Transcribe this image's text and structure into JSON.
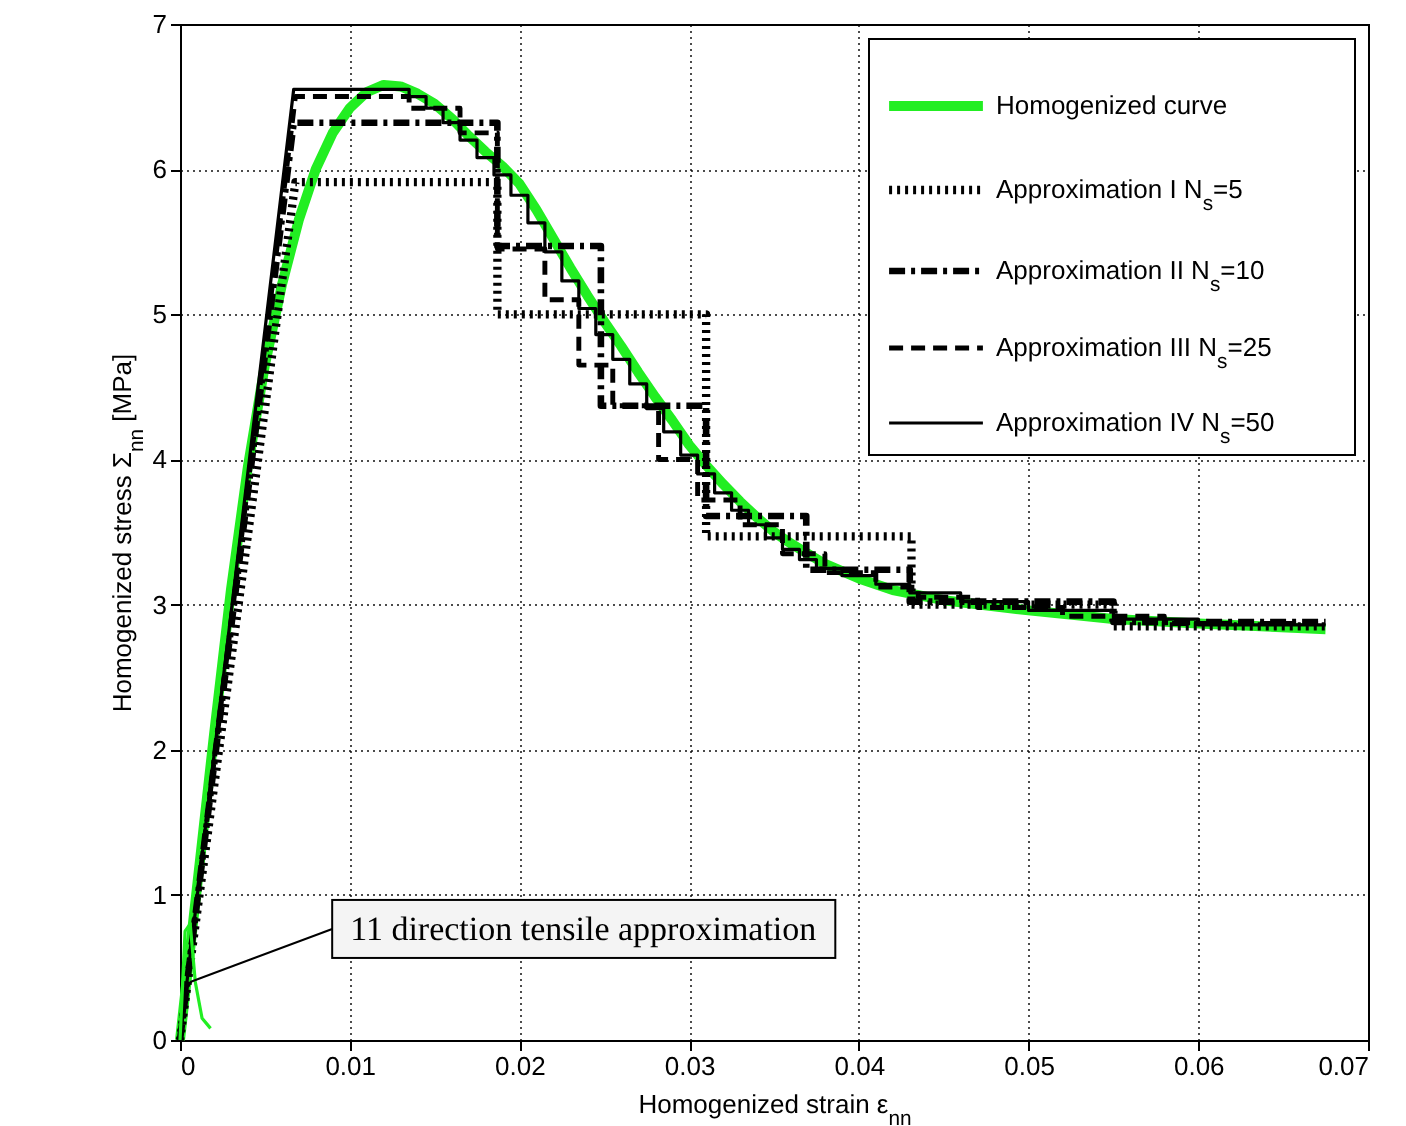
{
  "chart_data": {
    "type": "line",
    "xlabel": "Homogenized strain ε$_{nn}$",
    "ylabel": "Homogenized stress Σ$_{nn}$ [MPa]",
    "xlim": [
      0,
      0.07
    ],
    "xticks": [
      0,
      0.01,
      0.02,
      0.03,
      0.04,
      0.05,
      0.06,
      0.07
    ],
    "ylim": [
      0,
      7
    ],
    "yticks": [
      0,
      1,
      2,
      3,
      4,
      5,
      6,
      7
    ],
    "grid": true,
    "legend": "top right",
    "annotations": [
      {
        "text": "11 direction tensile approximation",
        "x": 0.0006,
        "y": 0.4
      }
    ],
    "series": [
      {
        "name": "Homogenized curve",
        "color": "#22ee22",
        "line_style": "solid",
        "x": [
          0,
          0.001,
          0.002,
          0.003,
          0.004,
          0.005,
          0.006,
          0.007,
          0.008,
          0.009,
          0.01,
          0.011,
          0.012,
          0.013,
          0.014,
          0.015,
          0.016,
          0.017,
          0.018,
          0.019,
          0.02,
          0.021,
          0.022,
          0.023,
          0.024,
          0.025,
          0.026,
          0.027,
          0.028,
          0.029,
          0.03,
          0.031,
          0.032,
          0.033,
          0.034,
          0.035,
          0.036,
          0.037,
          0.038,
          0.04,
          0.042,
          0.045,
          0.05,
          0.055,
          0.06,
          0.0675
        ],
        "values": [
          0,
          1.05,
          2.1,
          3.1,
          3.95,
          4.65,
          5.2,
          5.65,
          6.0,
          6.25,
          6.42,
          6.53,
          6.58,
          6.57,
          6.52,
          6.45,
          6.35,
          6.23,
          6.12,
          6.02,
          5.9,
          5.72,
          5.52,
          5.32,
          5.13,
          4.95,
          4.78,
          4.6,
          4.43,
          4.27,
          4.1,
          3.96,
          3.83,
          3.71,
          3.6,
          3.5,
          3.42,
          3.35,
          3.28,
          3.18,
          3.1,
          3.03,
          2.96,
          2.9,
          2.87,
          2.83
        ]
      },
      {
        "name": "Approximation I N$_{s}$=5",
        "color": "#000000",
        "line_style": "dotted",
        "x": [
          0,
          0.0068,
          0.0187,
          0.0187,
          0.031,
          0.031,
          0.0431,
          0.0431,
          0.055,
          0.055,
          0.0675
        ],
        "values": [
          0,
          5.91,
          5.91,
          5.0,
          5.0,
          3.47,
          3.47,
          3.0,
          3.0,
          2.85,
          2.85
        ]
      },
      {
        "name": "Approximation II N$_{s}$=10",
        "color": "#000000",
        "line_style": "dashdot",
        "x": [
          0,
          0.0067,
          0.0187,
          0.0187,
          0.0248,
          0.0248,
          0.031,
          0.031,
          0.0369,
          0.0369,
          0.043,
          0.043,
          0.055,
          0.055,
          0.0675
        ],
        "values": [
          0,
          6.32,
          6.32,
          5.47,
          5.47,
          4.37,
          4.37,
          3.61,
          3.61,
          3.24,
          3.24,
          3.02,
          3.02,
          2.88,
          2.88
        ]
      },
      {
        "name": "Approximation III N$_{s}$=25",
        "color": "#000000",
        "line_style": "dashed",
        "x": [
          0,
          0.0068,
          0.0135,
          0.0135,
          0.0165,
          0.0165,
          0.0187,
          0.0187,
          0.0215,
          0.0215,
          0.0235,
          0.0235,
          0.0255,
          0.0255,
          0.0282,
          0.0282,
          0.0305,
          0.0305,
          0.033,
          0.033,
          0.0355,
          0.0355,
          0.038,
          0.038,
          0.041,
          0.041,
          0.0435,
          0.0435,
          0.047,
          0.047,
          0.052,
          0.052,
          0.058,
          0.058,
          0.0675
        ],
        "values": [
          0,
          6.5,
          6.5,
          6.42,
          6.42,
          6.25,
          6.25,
          5.45,
          5.45,
          5.1,
          5.1,
          4.65,
          4.65,
          4.37,
          4.37,
          4.0,
          4.0,
          3.72,
          3.72,
          3.55,
          3.55,
          3.35,
          3.35,
          3.22,
          3.22,
          3.12,
          3.12,
          3.05,
          3.05,
          2.98,
          2.98,
          2.92,
          2.92,
          2.87,
          2.87
        ]
      },
      {
        "name": "Approximation IV N$_{s}$=50",
        "color": "#000000",
        "line_style": "solid",
        "x": [
          0,
          0.0067,
          0.0135,
          0.0135,
          0.0145,
          0.0145,
          0.0155,
          0.0155,
          0.0165,
          0.0165,
          0.0175,
          0.0175,
          0.0185,
          0.0185,
          0.0195,
          0.0195,
          0.0205,
          0.0205,
          0.0215,
          0.0215,
          0.0225,
          0.0225,
          0.0235,
          0.0235,
          0.0245,
          0.0245,
          0.0255,
          0.0255,
          0.0265,
          0.0265,
          0.0275,
          0.0275,
          0.0285,
          0.0285,
          0.0295,
          0.0295,
          0.0305,
          0.0305,
          0.0315,
          0.0315,
          0.0325,
          0.0325,
          0.0335,
          0.0335,
          0.0345,
          0.0345,
          0.0355,
          0.0355,
          0.0365,
          0.0365,
          0.0375,
          0.0375,
          0.039,
          0.039,
          0.041,
          0.041,
          0.043,
          0.043,
          0.046,
          0.046,
          0.05,
          0.05,
          0.055,
          0.055,
          0.06,
          0.06,
          0.0675
        ],
        "values": [
          0,
          6.55,
          6.55,
          6.5,
          6.5,
          6.42,
          6.42,
          6.32,
          6.32,
          6.2,
          6.2,
          6.08,
          6.08,
          5.96,
          5.96,
          5.82,
          5.82,
          5.63,
          5.63,
          5.43,
          5.43,
          5.23,
          5.23,
          5.04,
          5.04,
          4.86,
          4.86,
          4.69,
          4.69,
          4.52,
          4.52,
          4.35,
          4.35,
          4.19,
          4.19,
          4.03,
          4.03,
          3.9,
          3.9,
          3.77,
          3.77,
          3.65,
          3.65,
          3.55,
          3.55,
          3.46,
          3.46,
          3.38,
          3.38,
          3.31,
          3.31,
          3.25,
          3.25,
          3.2,
          3.2,
          3.14,
          3.14,
          3.08,
          3.08,
          3.02,
          3.02,
          2.96,
          2.96,
          2.9,
          2.9,
          2.86,
          2.86
        ]
      },
      {
        "color": "#22ee22",
        "line_style": "solid",
        "x": [
          0,
          0.0003,
          0.0006,
          0.0009,
          0.0013,
          0.0018
        ],
        "values": [
          0,
          0.75,
          0.8,
          0.4,
          0.15,
          0.08
        ]
      }
    ]
  }
}
